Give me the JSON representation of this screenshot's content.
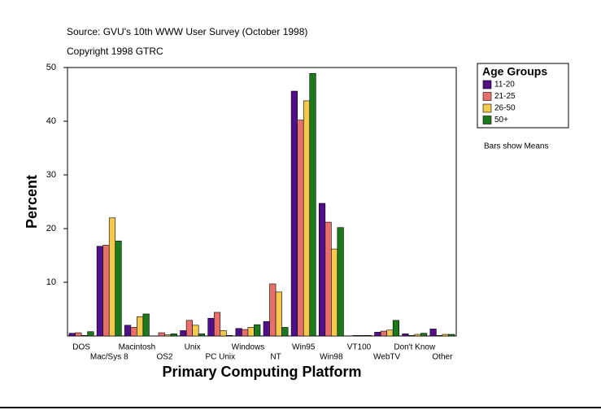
{
  "chart_data": {
    "type": "bar",
    "title": "Source: GVU's 10th WWW User Survey (October 1998)",
    "subtitle": "Copyright 1998 GTRC",
    "y_label": "Percent",
    "x_label": "Primary Computing Platform",
    "legend_title": "Age Groups",
    "note": "Bars show Means",
    "legend_position": "right",
    "categories": [
      "DOS",
      "Mac/Sys 8",
      "Macintosh",
      "OS2",
      "Unix",
      "PC Unix",
      "Windows",
      "NT",
      "Win95",
      "Win98",
      "VT100",
      "WebTV",
      "Don't Know",
      "Other"
    ],
    "series": [
      {
        "name": "11-20",
        "color": "#520f8a",
        "values": [
          0.5,
          16.7,
          2.0,
          0,
          1.0,
          3.3,
          1.4,
          2.7,
          45.6,
          24.7,
          0,
          0.7,
          0.4,
          1.3
        ]
      },
      {
        "name": "21-25",
        "color": "#e8706c",
        "values": [
          0.6,
          16.9,
          1.6,
          0.6,
          2.9,
          4.4,
          1.2,
          9.7,
          40.2,
          21.2,
          0.1,
          0.9,
          0.1,
          0.1
        ]
      },
      {
        "name": "26-50",
        "color": "#f3c94f",
        "values": [
          0.1,
          22.0,
          3.6,
          0.2,
          2.0,
          1.0,
          1.6,
          8.2,
          43.8,
          16.2,
          0.1,
          1.1,
          0.3,
          0.3
        ]
      },
      {
        "name": "50+",
        "color": "#1c7a1c",
        "values": [
          0.8,
          17.7,
          4.1,
          0.4,
          0.4,
          0.1,
          2.1,
          1.6,
          48.9,
          20.2,
          0.1,
          2.9,
          0.5,
          0.3
        ]
      }
    ],
    "ylim": [
      0,
      50
    ],
    "yticks": [
      10,
      20,
      30,
      40,
      50
    ],
    "grid": false
  }
}
